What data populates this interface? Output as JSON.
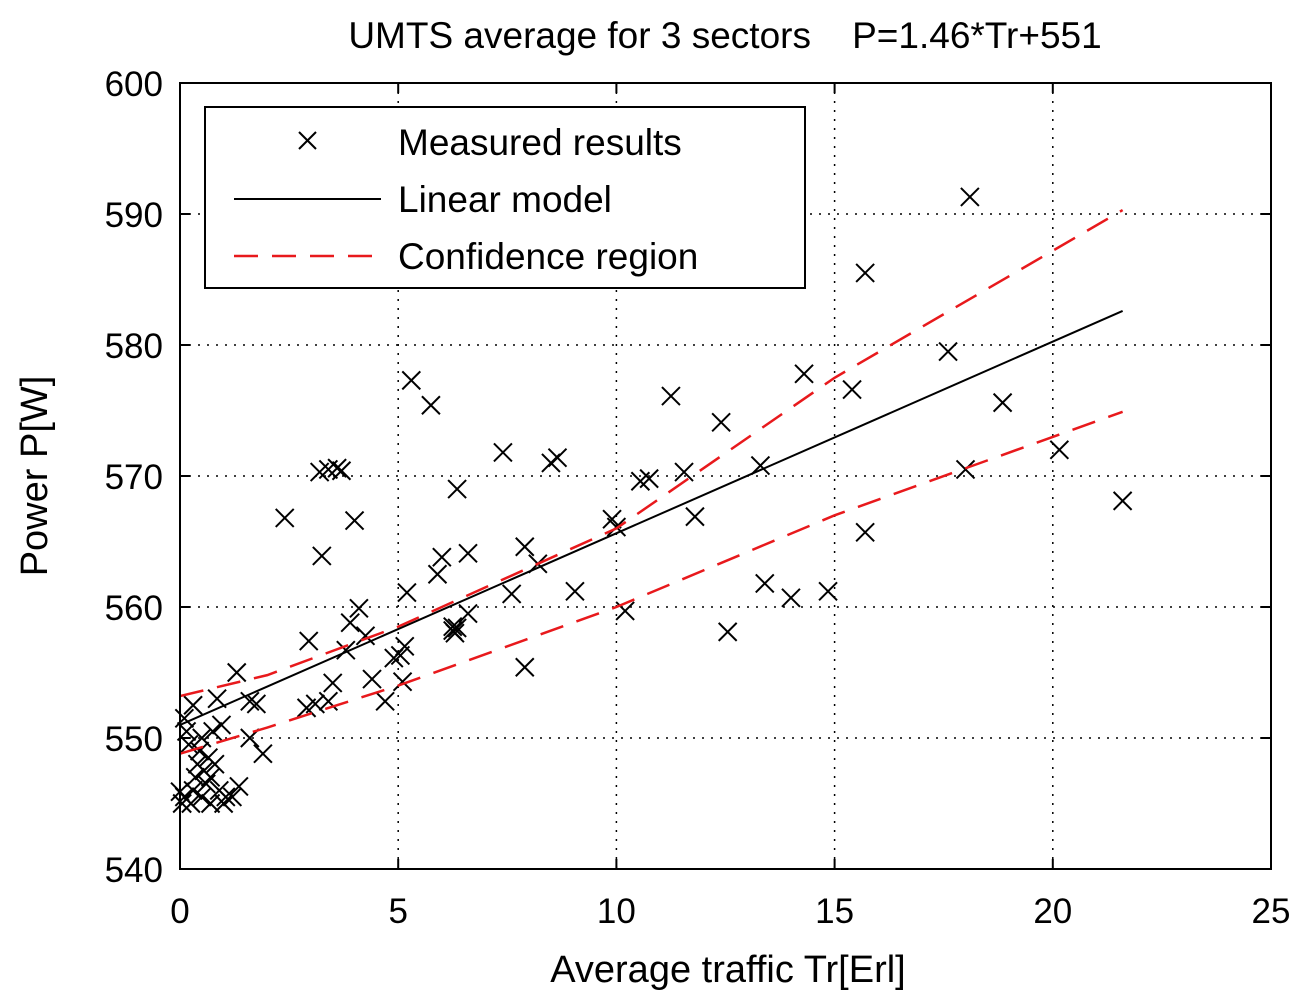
{
  "chart_data": {
    "type": "scatter",
    "title": "UMTS average for 3 sectors    P=1.46*Tr+551",
    "xlabel": "Average traffic Tr[Erl]",
    "ylabel": "Power P[W]",
    "xlim": [
      0,
      25
    ],
    "ylim": [
      540,
      600
    ],
    "xticks": [
      "0",
      "5",
      "10",
      "15",
      "20",
      "25"
    ],
    "yticks": [
      "540",
      "550",
      "560",
      "570",
      "580",
      "590",
      "600"
    ],
    "grid": true,
    "legend_position": "top-left",
    "colors": {
      "measured": "#000000",
      "linear": "#000000",
      "confidence": "#e8191c"
    },
    "legend": {
      "measured": "Measured results",
      "linear": "Linear model",
      "confidence": "Confidence region"
    },
    "series": [
      {
        "name": "Measured results",
        "style": "marker-x",
        "points": [
          [
            0.0,
            545.9
          ],
          [
            0.05,
            545.0
          ],
          [
            0.1,
            545.5
          ],
          [
            0.15,
            550.5
          ],
          [
            0.1,
            551.5
          ],
          [
            0.2,
            549.5
          ],
          [
            0.25,
            545.0
          ],
          [
            0.3,
            552.5
          ],
          [
            0.3,
            546.0
          ],
          [
            0.35,
            547.0
          ],
          [
            0.4,
            548.0
          ],
          [
            0.45,
            549.0
          ],
          [
            0.5,
            545.5
          ],
          [
            0.5,
            550.0
          ],
          [
            0.55,
            547.5
          ],
          [
            0.6,
            546.5
          ],
          [
            0.65,
            548.5
          ],
          [
            0.7,
            545.0
          ],
          [
            0.7,
            547.0
          ],
          [
            0.75,
            550.5
          ],
          [
            0.8,
            548.0
          ],
          [
            0.85,
            553.0
          ],
          [
            0.9,
            546.0
          ],
          [
            0.95,
            551.0
          ],
          [
            1.0,
            545.0
          ],
          [
            1.05,
            545.5
          ],
          [
            1.2,
            545.5
          ],
          [
            1.3,
            555.0
          ],
          [
            1.35,
            546.3
          ],
          [
            1.6,
            550.0
          ],
          [
            1.6,
            552.8
          ],
          [
            1.75,
            552.6
          ],
          [
            1.9,
            548.8
          ],
          [
            2.4,
            566.8
          ],
          [
            2.9,
            552.3
          ],
          [
            2.95,
            557.4
          ],
          [
            3.1,
            552.6
          ],
          [
            3.2,
            570.3
          ],
          [
            3.25,
            563.9
          ],
          [
            3.4,
            570.5
          ],
          [
            3.4,
            552.8
          ],
          [
            3.5,
            554.2
          ],
          [
            3.6,
            570.6
          ],
          [
            3.7,
            570.4
          ],
          [
            3.8,
            556.7
          ],
          [
            3.9,
            558.8
          ],
          [
            4.0,
            566.6
          ],
          [
            4.1,
            559.9
          ],
          [
            4.25,
            557.8
          ],
          [
            4.4,
            554.5
          ],
          [
            4.7,
            552.8
          ],
          [
            4.9,
            556.1
          ],
          [
            5.05,
            556.3
          ],
          [
            5.15,
            557.0
          ],
          [
            5.1,
            554.3
          ],
          [
            5.2,
            561.1
          ],
          [
            5.3,
            577.3
          ],
          [
            5.75,
            575.4
          ],
          [
            5.9,
            562.5
          ],
          [
            6.0,
            563.8
          ],
          [
            6.25,
            558.2
          ],
          [
            6.25,
            558.5
          ],
          [
            6.3,
            558.0
          ],
          [
            6.35,
            558.4
          ],
          [
            6.35,
            569.0
          ],
          [
            6.6,
            559.5
          ],
          [
            6.6,
            564.1
          ],
          [
            7.4,
            571.8
          ],
          [
            7.6,
            561.0
          ],
          [
            7.9,
            555.4
          ],
          [
            7.9,
            564.6
          ],
          [
            8.2,
            563.3
          ],
          [
            8.5,
            571.0
          ],
          [
            8.65,
            571.4
          ],
          [
            9.05,
            561.2
          ],
          [
            9.9,
            566.7
          ],
          [
            10.0,
            566.1
          ],
          [
            10.2,
            559.7
          ],
          [
            10.55,
            569.6
          ],
          [
            10.75,
            569.8
          ],
          [
            11.25,
            576.1
          ],
          [
            11.55,
            570.3
          ],
          [
            11.8,
            566.9
          ],
          [
            12.4,
            574.1
          ],
          [
            12.55,
            558.1
          ],
          [
            13.3,
            570.8
          ],
          [
            13.4,
            561.8
          ],
          [
            14.0,
            560.7
          ],
          [
            14.3,
            577.8
          ],
          [
            14.85,
            561.2
          ],
          [
            15.4,
            576.6
          ],
          [
            15.7,
            585.5
          ],
          [
            15.7,
            565.7
          ],
          [
            17.6,
            579.5
          ],
          [
            18.0,
            570.5
          ],
          [
            18.1,
            591.3
          ],
          [
            18.85,
            575.6
          ],
          [
            20.15,
            572.0
          ],
          [
            21.6,
            568.1
          ]
        ]
      },
      {
        "name": "Linear model",
        "style": "solid",
        "points": [
          [
            0.0,
            551.0
          ],
          [
            21.6,
            582.6
          ]
        ]
      },
      {
        "name": "Confidence region",
        "style": "dashed",
        "points": [
          [
            0.0,
            553.2
          ],
          [
            2.0,
            554.8
          ],
          [
            5.0,
            558.5
          ],
          [
            10.0,
            566.0
          ],
          [
            15.0,
            577.5
          ],
          [
            21.6,
            590.3
          ]
        ]
      },
      {
        "name": "Confidence region",
        "style": "dashed",
        "points": [
          [
            0.0,
            548.8
          ],
          [
            2.0,
            550.8
          ],
          [
            5.0,
            554.0
          ],
          [
            10.0,
            560.0
          ],
          [
            15.0,
            567.0
          ],
          [
            21.6,
            574.9
          ]
        ]
      }
    ]
  }
}
